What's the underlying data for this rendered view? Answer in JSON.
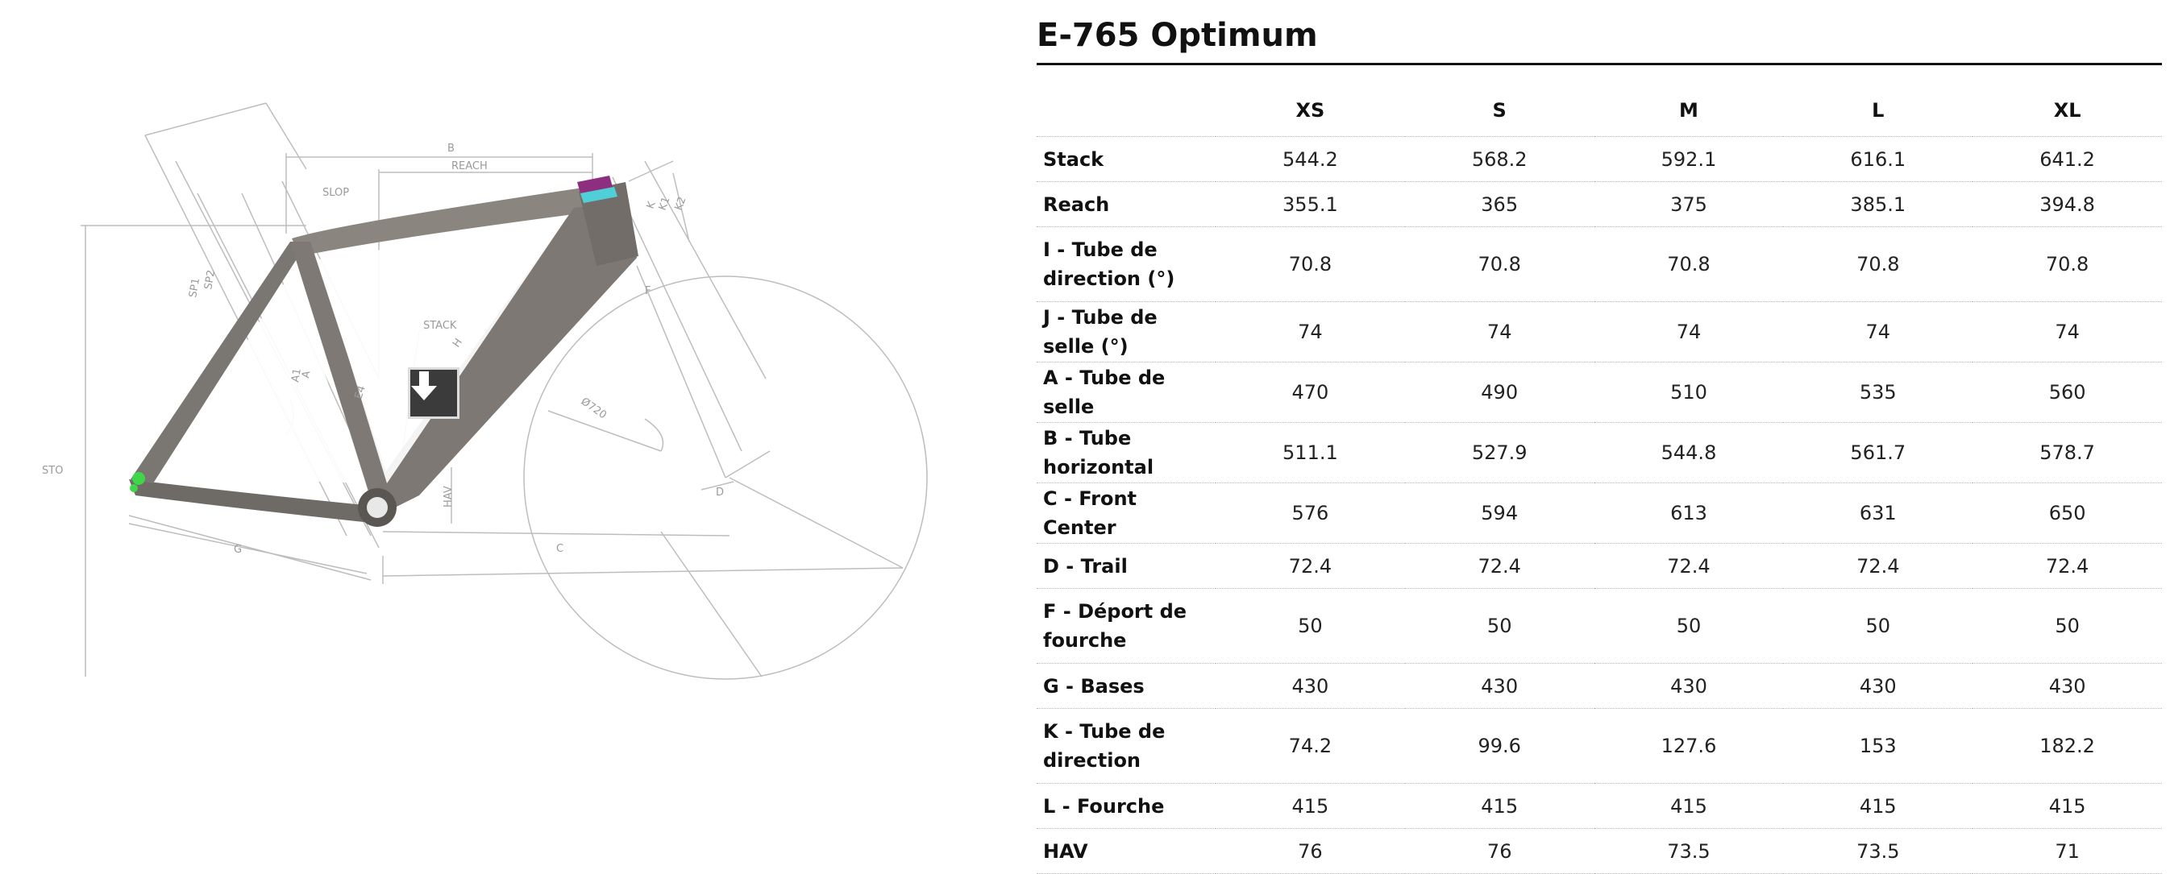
{
  "diagram": {
    "labels": {
      "B": "B",
      "REACH": "REACH",
      "SLOP": "SLOP",
      "STACK": "STACK",
      "STO": "STO",
      "HAV": "HAV",
      "C": "C",
      "G": "G",
      "O720": "Ø720",
      "SP1": "SP1",
      "SP2": "SP2",
      "A1": "A1",
      "A": "A",
      "K": "K",
      "K1": "K1",
      "K2": "K2",
      "F": "F",
      "D": "D",
      "E4": "E4",
      "H": "H"
    },
    "download_icon": "download-arrow-icon",
    "colors": {
      "frame": "#7d7873",
      "frame_dark": "#55514d",
      "headtube_top": "#8e2e7e",
      "headtube_mid": "#4fd0d8",
      "dropout": "#3fd64a",
      "lines": "#b9b9b9"
    }
  },
  "spec": {
    "title": "E-765 Optimum",
    "sizes": [
      "XS",
      "S",
      "M",
      "L",
      "XL"
    ],
    "rows": [
      {
        "label": "Stack",
        "values": [
          "544.2",
          "568.2",
          "592.1",
          "616.1",
          "641.2"
        ]
      },
      {
        "label": "Reach",
        "values": [
          "355.1",
          "365",
          "375",
          "385.1",
          "394.8"
        ]
      },
      {
        "label": "I - Tube de direction (°)",
        "values": [
          "70.8",
          "70.8",
          "70.8",
          "70.8",
          "70.8"
        ]
      },
      {
        "label": "J - Tube de selle (°)",
        "values": [
          "74",
          "74",
          "74",
          "74",
          "74"
        ]
      },
      {
        "label": "A - Tube de selle",
        "values": [
          "470",
          "490",
          "510",
          "535",
          "560"
        ]
      },
      {
        "label": "B - Tube horizontal",
        "values": [
          "511.1",
          "527.9",
          "544.8",
          "561.7",
          "578.7"
        ]
      },
      {
        "label": "C - Front Center",
        "values": [
          "576",
          "594",
          "613",
          "631",
          "650"
        ]
      },
      {
        "label": "D - Trail",
        "values": [
          "72.4",
          "72.4",
          "72.4",
          "72.4",
          "72.4"
        ]
      },
      {
        "label": "F - Déport de fourche",
        "values": [
          "50",
          "50",
          "50",
          "50",
          "50"
        ]
      },
      {
        "label": "G - Bases",
        "values": [
          "430",
          "430",
          "430",
          "430",
          "430"
        ]
      },
      {
        "label": "K - Tube de direction",
        "values": [
          "74.2",
          "99.6",
          "127.6",
          "153",
          "182.2"
        ]
      },
      {
        "label": "L - Fourche",
        "values": [
          "415",
          "415",
          "415",
          "415",
          "415"
        ]
      },
      {
        "label": "HAV",
        "values": [
          "76",
          "76",
          "73.5",
          "73.5",
          "71"
        ]
      }
    ]
  }
}
